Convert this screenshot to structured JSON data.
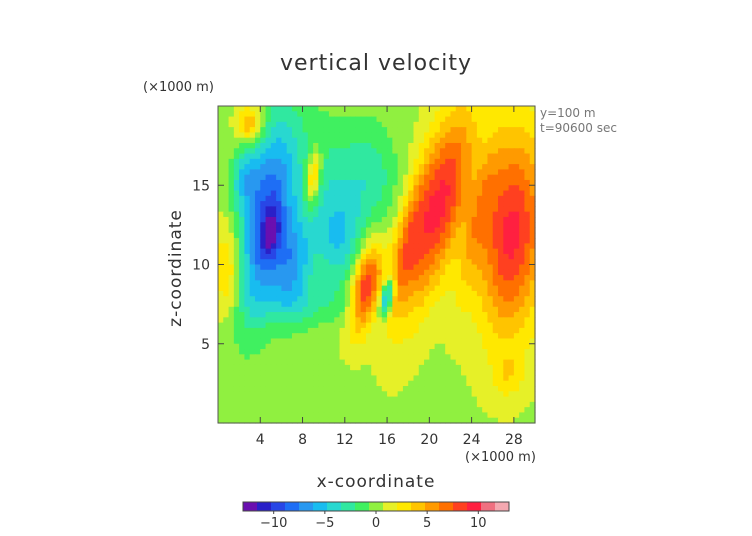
{
  "chart_data": {
    "type": "heatmap",
    "title": "vertical velocity",
    "xlabel": "x-coordinate",
    "ylabel": "z-coordinate",
    "x_unit": "(×1000 m)",
    "y_unit": "(×1000 m)",
    "annotations": [
      "y=100 m",
      "t=90600 sec"
    ],
    "xlim": [
      0,
      30
    ],
    "ylim": [
      0,
      20
    ],
    "x_ticks": [
      4,
      8,
      12,
      16,
      20,
      24,
      28
    ],
    "y_ticks": [
      5,
      10,
      15
    ],
    "colorbar": {
      "range": [
        -13,
        13
      ],
      "ticks": [
        -10,
        -5,
        0,
        5,
        10
      ],
      "colors": [
        "#6a0fb0",
        "#2a20c8",
        "#2846e6",
        "#1e6ef5",
        "#2898f0",
        "#18bcf0",
        "#28d8d0",
        "#30e8a0",
        "#40f060",
        "#90f040",
        "#e6f028",
        "#ffe800",
        "#ffc400",
        "#ff9a00",
        "#ff7000",
        "#ff4020",
        "#ff2040",
        "#f07080",
        "#f4a8b0"
      ]
    },
    "features": [
      {
        "x": 4.5,
        "z": 13.0,
        "sx": 1.6,
        "sz": 4.5,
        "w": -9,
        "rot": 0.25
      },
      {
        "x": 5.0,
        "z": 12.0,
        "sx": 0.6,
        "sz": 1.2,
        "w": -4,
        "rot": 0.2
      },
      {
        "x": 2.5,
        "z": 15.5,
        "sx": 0.9,
        "sz": 1.4,
        "w": -4,
        "rot": 0.2
      },
      {
        "x": 7.0,
        "z": 10.0,
        "sx": 1.4,
        "sz": 2.2,
        "w": -6,
        "rot": 0.1
      },
      {
        "x": 10.0,
        "z": 15.0,
        "sx": 2.4,
        "sz": 3.0,
        "w": -3,
        "rot": 0
      },
      {
        "x": 11.5,
        "z": 11.5,
        "sx": 1.5,
        "sz": 2.0,
        "w": -4,
        "rot": 0
      },
      {
        "x": 14.5,
        "z": 15.5,
        "sx": 1.8,
        "sz": 2.4,
        "w": -3,
        "rot": 0
      },
      {
        "x": 9.0,
        "z": 7.5,
        "sx": 4.0,
        "sz": 1.0,
        "w": -2,
        "rot": 0
      },
      {
        "x": 3.0,
        "z": 18.8,
        "sx": 0.8,
        "sz": 0.8,
        "w": 5,
        "rot": 0
      },
      {
        "x": 9.0,
        "z": 15.5,
        "sx": 0.5,
        "sz": 1.3,
        "w": 6,
        "rot": 0.15
      },
      {
        "x": 1.0,
        "z": 9.5,
        "sx": 1.0,
        "sz": 2.2,
        "w": 4,
        "rot": 0
      },
      {
        "x": 14.0,
        "z": 8.5,
        "sx": 0.9,
        "sz": 2.0,
        "w": 9,
        "rot": 0.3
      },
      {
        "x": 16.0,
        "z": 8.0,
        "sx": 0.4,
        "sz": 0.9,
        "w": -8,
        "rot": 0.3
      },
      {
        "x": 17.5,
        "z": 10.5,
        "sx": 0.8,
        "sz": 3.0,
        "w": 4,
        "rot": 0.3
      },
      {
        "x": 19.5,
        "z": 12.5,
        "sx": 1.3,
        "sz": 4.5,
        "w": 6,
        "rot": 0.3
      },
      {
        "x": 22.0,
        "z": 14.5,
        "sx": 1.3,
        "sz": 4.0,
        "w": 6,
        "rot": 0.3
      },
      {
        "x": 24.5,
        "z": 12.5,
        "sx": 0.8,
        "sz": 3.5,
        "w": 3,
        "rot": 0.3
      },
      {
        "x": 27.8,
        "z": 12.0,
        "sx": 2.2,
        "sz": 4.5,
        "w": 9,
        "rot": 0.1
      },
      {
        "x": 27.5,
        "z": 3.0,
        "sx": 1.0,
        "sz": 1.0,
        "w": 2,
        "rot": 0
      }
    ]
  }
}
